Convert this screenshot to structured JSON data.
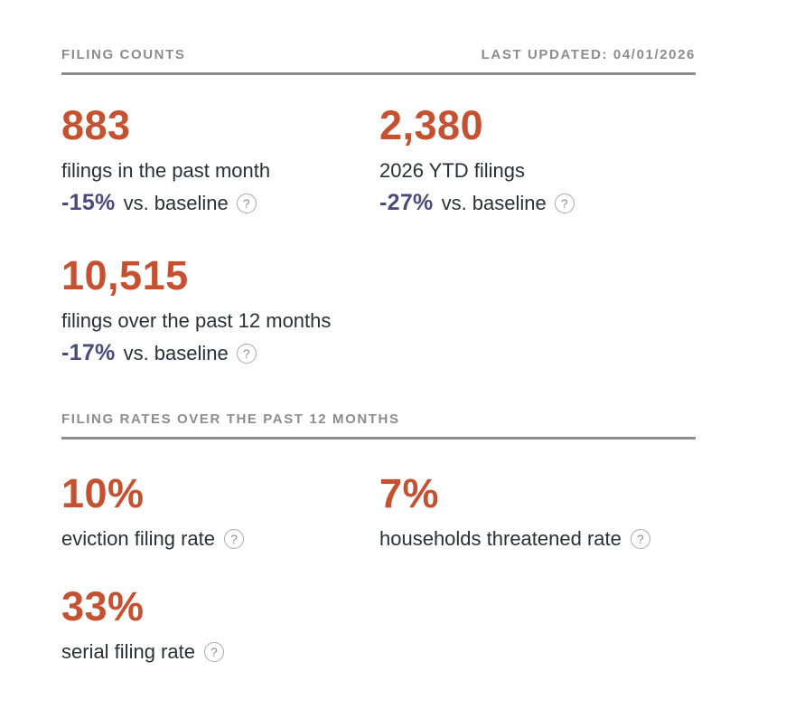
{
  "panel": {
    "sections": [
      {
        "title": "FILING COUNTS",
        "meta": "LAST UPDATED: 04/01/2026",
        "stats": [
          {
            "value": "883",
            "label": "filings in the past month",
            "delta": "-15%",
            "delta_suffix": "vs. baseline"
          },
          {
            "value": "2,380",
            "label": "2026 YTD filings",
            "delta": "-27%",
            "delta_suffix": "vs. baseline"
          },
          {
            "value": "10,515",
            "label": "filings over the past 12 months",
            "delta": "-17%",
            "delta_suffix": "vs. baseline"
          }
        ]
      },
      {
        "title": "FILING RATES OVER THE PAST 12 MONTHS",
        "stats": [
          {
            "value": "10%",
            "label": "eviction filing rate"
          },
          {
            "value": "7%",
            "label": "households threatened rate"
          },
          {
            "value": "33%",
            "label": "serial filing rate"
          }
        ]
      }
    ]
  },
  "icons": {
    "help_glyph": "?"
  },
  "colors": {
    "accent_orange": "#c65130",
    "delta_navy": "#474c7d",
    "heading_gray": "#8c8c8c",
    "text_dark": "#2d2f37",
    "help_icon_gray": "#8f8f8f"
  }
}
